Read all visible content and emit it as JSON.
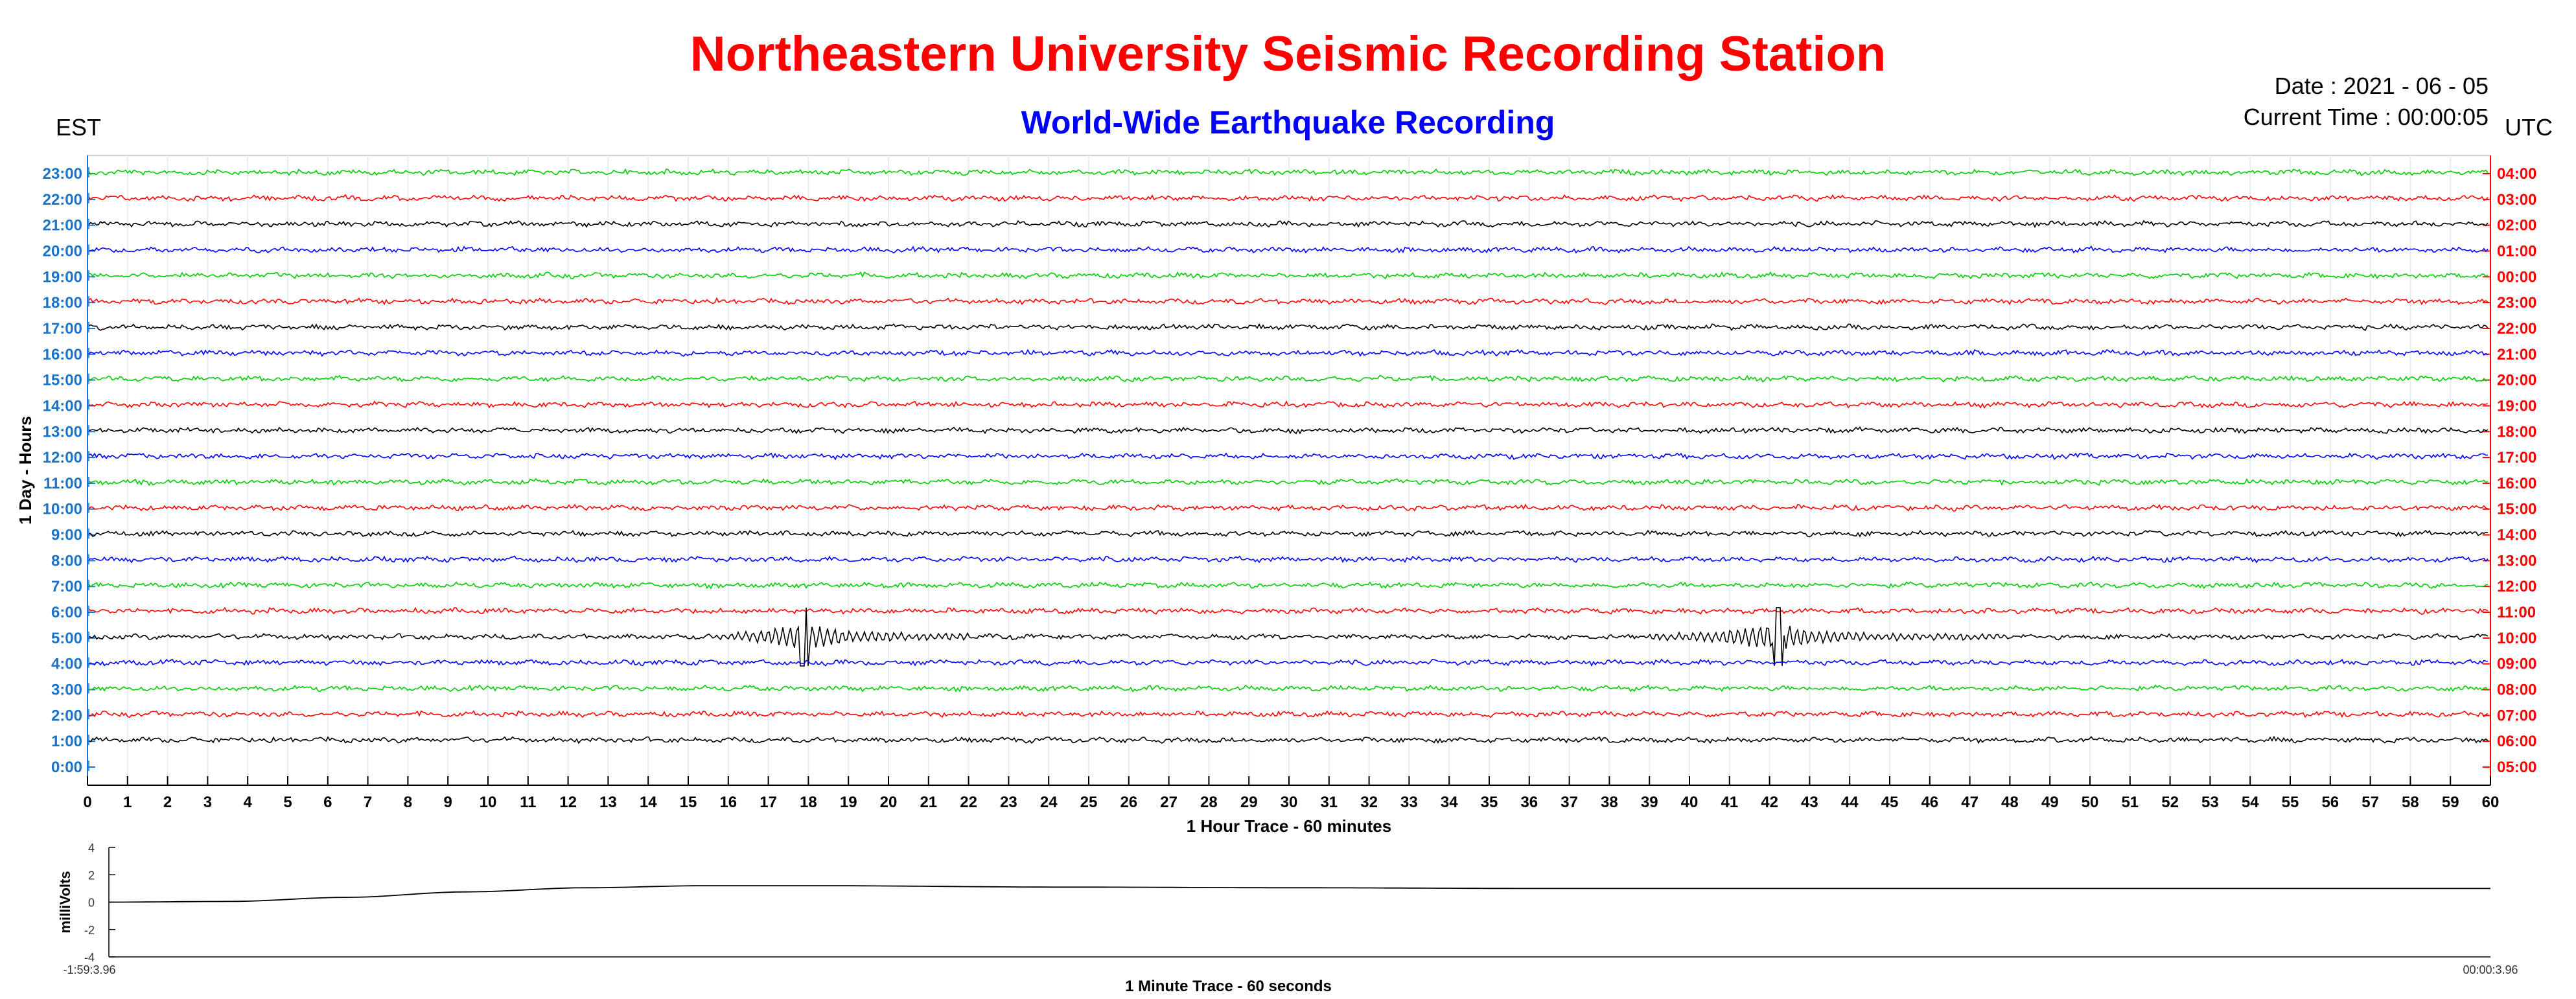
{
  "header": {
    "title": "Northeastern University Seismic Recording Station",
    "subtitle": "World-Wide Earthquake Recording",
    "date": "Date : 2021 - 06 - 05",
    "current_time": "Current Time : 00:00:05",
    "left_zone": "EST",
    "right_zone": "UTC"
  },
  "colors": {
    "title": "#ff0000",
    "subtitle": "#0000ff",
    "left_ticks": "#1a73c8",
    "right_ticks": "#ff0000",
    "trace_cycle": [
      "#000000",
      "#ff0000",
      "#00cc00",
      "#0000ff"
    ]
  },
  "chart_data": [
    {
      "type": "line",
      "title": "",
      "xlabel": "1 Hour Trace - 60 minutes",
      "ylabel": "1 Day - Hours",
      "xlim": [
        0,
        60
      ],
      "x_ticks": [
        "0",
        "1",
        "2",
        "3",
        "4",
        "5",
        "6",
        "7",
        "8",
        "9",
        "10",
        "11",
        "12",
        "13",
        "14",
        "15",
        "16",
        "17",
        "18",
        "19",
        "20",
        "21",
        "22",
        "23",
        "24",
        "25",
        "26",
        "27",
        "28",
        "29",
        "30",
        "31",
        "32",
        "33",
        "34",
        "35",
        "36",
        "37",
        "38",
        "39",
        "40",
        "41",
        "42",
        "43",
        "44",
        "45",
        "46",
        "47",
        "48",
        "49",
        "50",
        "51",
        "52",
        "53",
        "54",
        "55",
        "56",
        "57",
        "58",
        "59",
        "60"
      ],
      "left_ticks": [
        "23:00",
        "22:00",
        "21:00",
        "20:00",
        "19:00",
        "18:00",
        "17:00",
        "16:00",
        "15:00",
        "14:00",
        "13:00",
        "12:00",
        "11:00",
        "10:00",
        "9:00",
        "8:00",
        "7:00",
        "6:00",
        "5:00",
        "4:00",
        "3:00",
        "2:00",
        "1:00",
        "0:00"
      ],
      "right_ticks": [
        "04:00",
        "03:00",
        "02:00",
        "01:00",
        "00:00",
        "23:00",
        "22:00",
        "21:00",
        "20:00",
        "19:00",
        "18:00",
        "17:00",
        "16:00",
        "15:00",
        "14:00",
        "13:00",
        "12:00",
        "11:00",
        "10:00",
        "09:00",
        "08:00",
        "07:00",
        "06:00",
        "05:00"
      ],
      "trace_colors_top_to_bottom": [
        "green",
        "red",
        "black",
        "blue",
        "green",
        "red",
        "black",
        "blue",
        "green",
        "red",
        "black",
        "blue",
        "green",
        "red",
        "black",
        "blue",
        "green",
        "red",
        "black",
        "blue",
        "green",
        "red",
        "black"
      ],
      "events": [
        {
          "trace": "5:00",
          "peak_minute": 17.9,
          "onset_minute": 15.5,
          "coda_end_minute": 22.0
        },
        {
          "trace": "5:00",
          "peak_minute": 42.2,
          "onset_minute": 39.0,
          "coda_end_minute": 48.0
        }
      ],
      "grid": true
    },
    {
      "type": "line",
      "title": "",
      "xlabel": "1 Minute Trace  - 60 seconds",
      "ylabel": "milliVolts",
      "ylim": [
        -4,
        4
      ],
      "y_ticks": [
        "4",
        "2",
        "0",
        "-2",
        "-4"
      ],
      "x_start_label": "-1:59:3.96",
      "x_end_label": "00:00:3.96",
      "series": [
        {
          "x": [
            0,
            3,
            6,
            9,
            12,
            15,
            18,
            24,
            30,
            36,
            42,
            48,
            54,
            60
          ],
          "y": [
            0.0,
            0.05,
            0.35,
            0.75,
            1.05,
            1.2,
            1.2,
            1.1,
            1.05,
            1.0,
            1.0,
            1.0,
            1.0,
            1.0
          ]
        }
      ]
    }
  ]
}
